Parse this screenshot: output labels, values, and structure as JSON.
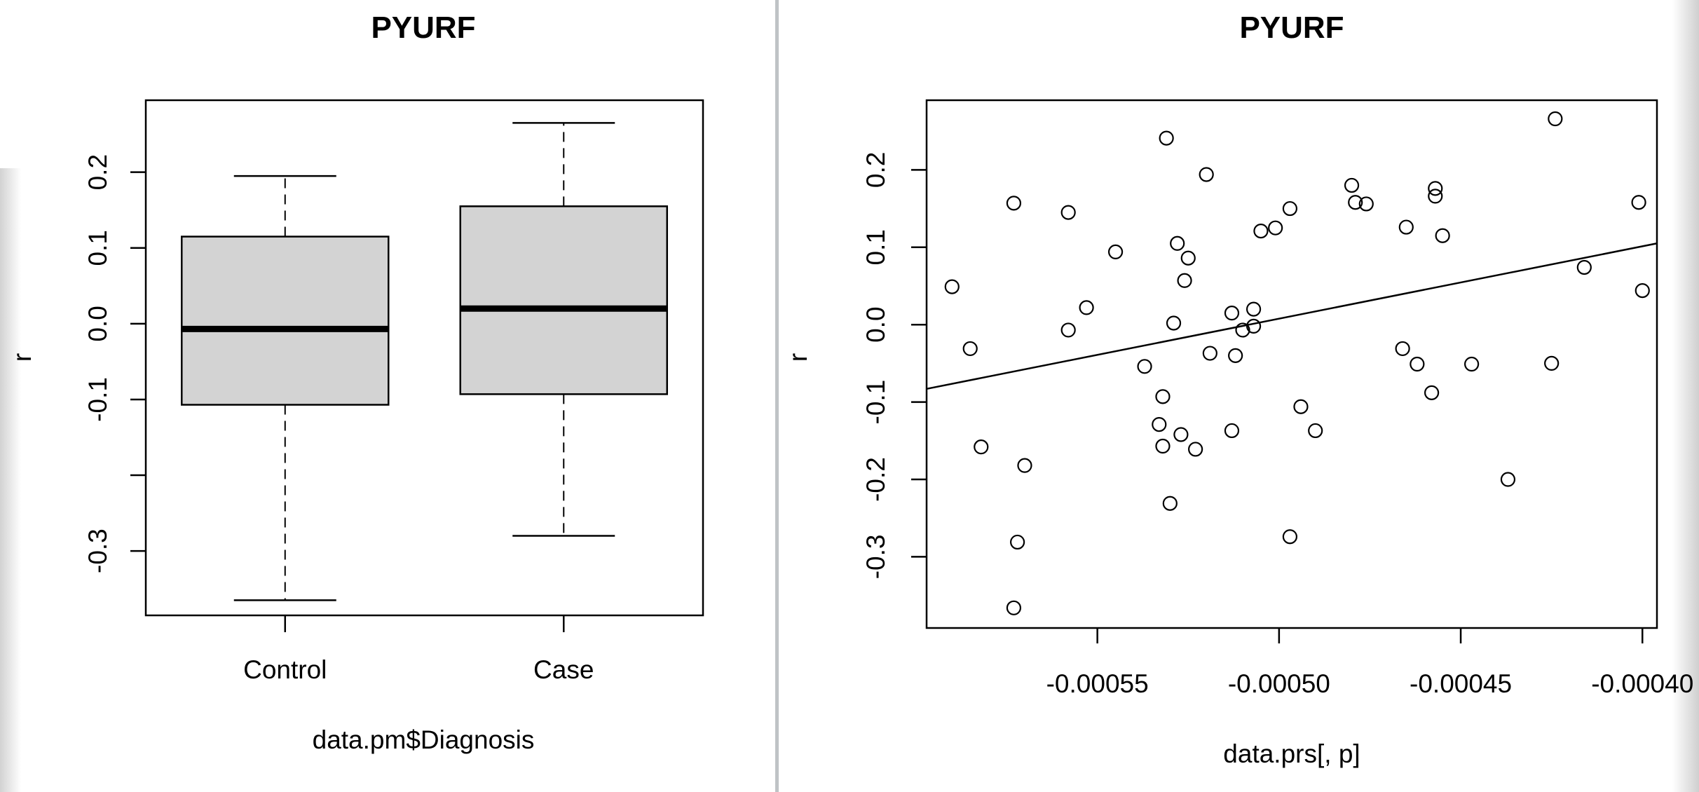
{
  "colors": {
    "box_fill": "#d3d3d3",
    "ink": "#000000",
    "divider": "#bfc3c6",
    "background": "#ffffff"
  },
  "chart_data": [
    {
      "type": "box",
      "title": "PYURF",
      "xlabel": "data.pm$Diagnosis",
      "ylabel": "r",
      "ylim": [
        -0.385,
        0.295
      ],
      "y_ticks": [
        -0.3,
        -0.2,
        -0.1,
        0.0,
        0.1,
        0.2
      ],
      "y_tick_labels": [
        "-0.3",
        "",
        "-0.1",
        "0.0",
        "0.1",
        "0.2"
      ],
      "categories": [
        "Control",
        "Case"
      ],
      "boxes": [
        {
          "name": "Control",
          "whisker_low": -0.365,
          "q1": -0.107,
          "median": -0.007,
          "q3": 0.115,
          "whisker_high": 0.195
        },
        {
          "name": "Case",
          "whisker_low": -0.28,
          "q1": -0.093,
          "median": 0.02,
          "q3": 0.155,
          "whisker_high": 0.265
        }
      ]
    },
    {
      "type": "scatter",
      "title": "PYURF",
      "xlabel": "data.prs[, p]",
      "ylabel": "r",
      "xlim": [
        -0.000597,
        -0.000396
      ],
      "ylim": [
        -0.392,
        0.29
      ],
      "x_ticks": [
        -0.00055,
        -0.0005,
        -0.00045,
        -0.0004
      ],
      "x_tick_labels": [
        "-0.00055",
        "-0.00050",
        "-0.00045",
        "-0.00040"
      ],
      "y_ticks": [
        -0.3,
        -0.2,
        -0.1,
        0.0,
        0.1,
        0.2
      ],
      "y_tick_labels": [
        "-0.3",
        "-0.2",
        "-0.1",
        "0.0",
        "0.1",
        "0.2"
      ],
      "fit_line": {
        "x": [
          -0.000597,
          -0.000396
        ],
        "y": [
          -0.083,
          0.105
        ]
      },
      "points": [
        [
          -0.00059,
          0.049
        ],
        [
          -0.000585,
          -0.031
        ],
        [
          -0.000582,
          -0.158
        ],
        [
          -0.000573,
          0.157
        ],
        [
          -0.000572,
          -0.281
        ],
        [
          -0.00057,
          -0.182
        ],
        [
          -0.000573,
          -0.366
        ],
        [
          -0.000558,
          0.145
        ],
        [
          -0.000558,
          -0.007
        ],
        [
          -0.000553,
          0.022
        ],
        [
          -0.000545,
          0.094
        ],
        [
          -0.000537,
          -0.054
        ],
        [
          -0.000531,
          0.241
        ],
        [
          -0.000532,
          -0.093
        ],
        [
          -0.000533,
          -0.129
        ],
        [
          -0.000532,
          -0.157
        ],
        [
          -0.00053,
          -0.231
        ],
        [
          -0.000529,
          0.002
        ],
        [
          -0.000528,
          0.105
        ],
        [
          -0.000527,
          -0.142
        ],
        [
          -0.000525,
          0.086
        ],
        [
          -0.000526,
          0.057
        ],
        [
          -0.000523,
          -0.161
        ],
        [
          -0.00052,
          0.194
        ],
        [
          -0.000519,
          -0.037
        ],
        [
          -0.000513,
          0.015
        ],
        [
          -0.000513,
          -0.137
        ],
        [
          -0.000512,
          -0.04
        ],
        [
          -0.00051,
          -0.007
        ],
        [
          -0.000507,
          0.02
        ],
        [
          -0.000507,
          -0.002
        ],
        [
          -0.000505,
          0.121
        ],
        [
          -0.000501,
          0.125
        ],
        [
          -0.000497,
          0.15
        ],
        [
          -0.000497,
          -0.274
        ],
        [
          -0.000494,
          -0.106
        ],
        [
          -0.00049,
          -0.137
        ],
        [
          -0.00048,
          0.18
        ],
        [
          -0.000479,
          0.158
        ],
        [
          -0.000476,
          0.156
        ],
        [
          -0.000466,
          -0.031
        ],
        [
          -0.000465,
          0.126
        ],
        [
          -0.000462,
          -0.051
        ],
        [
          -0.000457,
          0.176
        ],
        [
          -0.000457,
          0.166
        ],
        [
          -0.000458,
          -0.088
        ],
        [
          -0.000455,
          0.115
        ],
        [
          -0.000447,
          -0.051
        ],
        [
          -0.000437,
          -0.2
        ],
        [
          -0.000425,
          -0.05
        ],
        [
          -0.000424,
          0.266
        ],
        [
          -0.000416,
          0.074
        ],
        [
          -0.000401,
          0.158
        ],
        [
          -0.0004,
          0.044
        ]
      ]
    }
  ]
}
